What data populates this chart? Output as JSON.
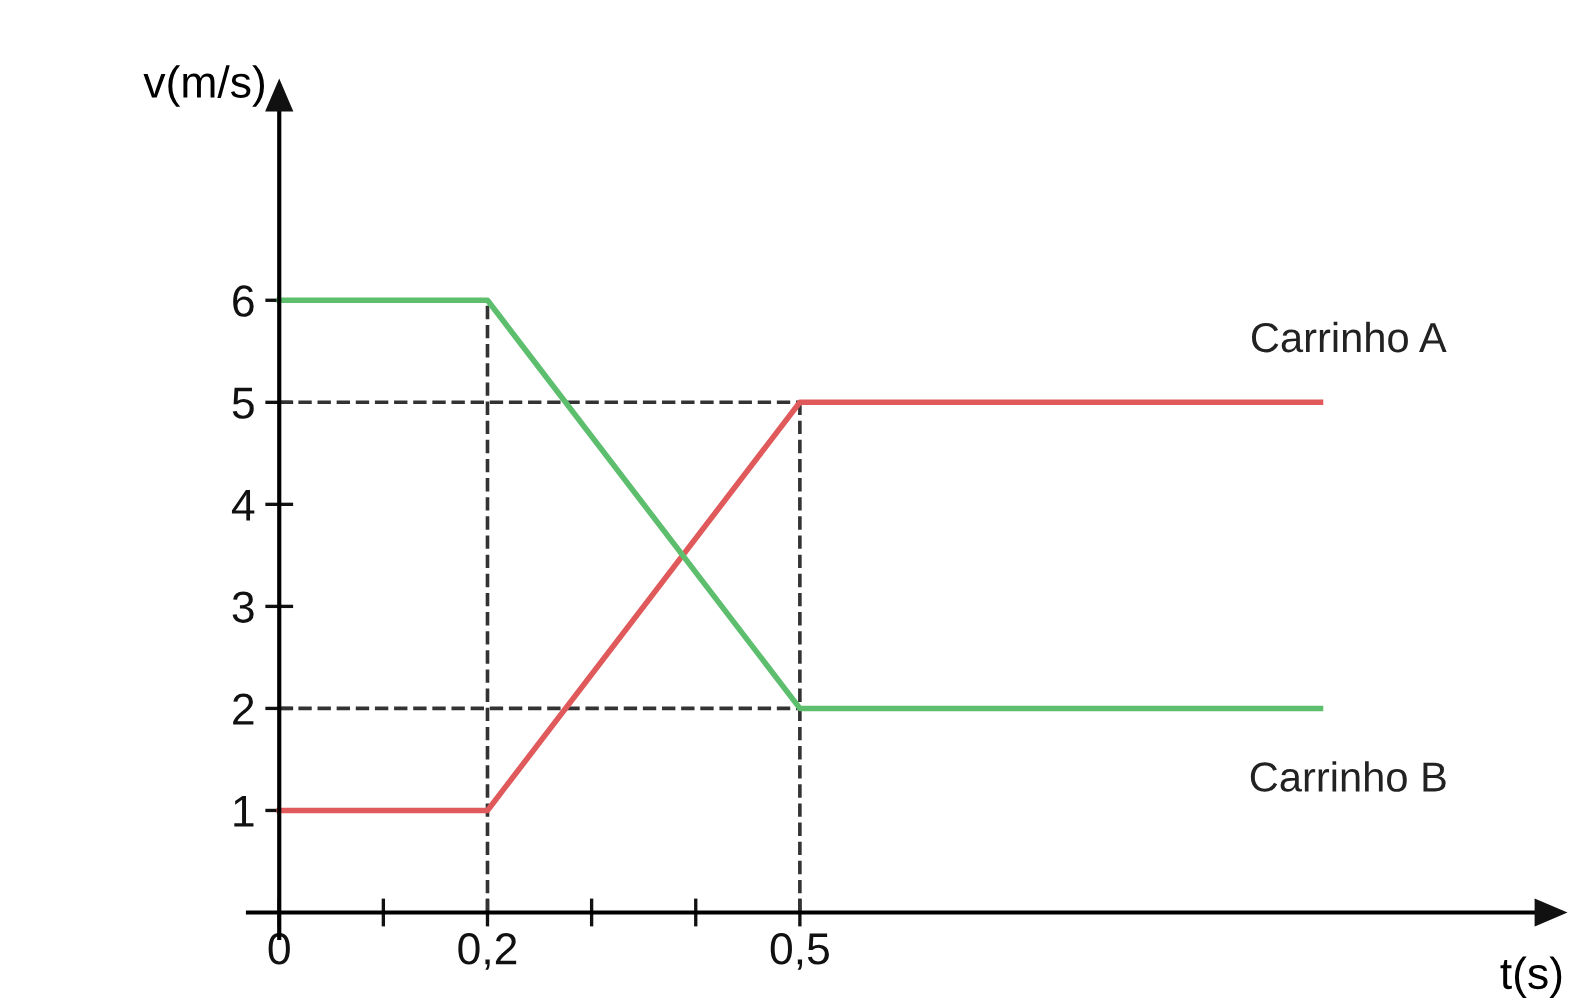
{
  "chart_data": {
    "type": "line",
    "xlabel": "t(s)",
    "ylabel": "v(m/s)",
    "series": [
      {
        "name": "Carrinho A",
        "color": "#e05a5c",
        "x": [
          0,
          0.2,
          0.5,
          1.0
        ],
        "values": [
          1,
          1,
          5,
          5
        ]
      },
      {
        "name": "Carrinho B",
        "color": "#5dbf6e",
        "x": [
          0,
          0.2,
          0.5,
          1.0
        ],
        "values": [
          6,
          6,
          2,
          2
        ]
      }
    ],
    "xlim": [
      -0.03,
      1.23
    ],
    "ylim": [
      -0.25,
      8.1
    ],
    "xticks": [
      0,
      {
        "value": 0.1,
        "label": null
      },
      {
        "value": 0.2,
        "label": "0,2"
      },
      {
        "value": 0.3,
        "label": null
      },
      {
        "value": 0.4,
        "label": null
      },
      {
        "value": 0.5,
        "label": "0,5"
      }
    ],
    "yticks": [
      1,
      2,
      3,
      4,
      5,
      6
    ],
    "ref_lines": [
      {
        "axis": "y",
        "value": 5,
        "color": "#333333",
        "line_style": "dashed"
      },
      {
        "axis": "y",
        "value": 2,
        "color": "#333333",
        "line_style": "dashed"
      },
      {
        "axis": "x",
        "value": 0.2,
        "color": "#333333",
        "line_style": "dashed"
      },
      {
        "axis": "x",
        "value": 0.5,
        "color": "#333333",
        "line_style": "dashed"
      }
    ],
    "grid": false,
    "legend": false,
    "marker": "none",
    "line_style": "solid"
  }
}
